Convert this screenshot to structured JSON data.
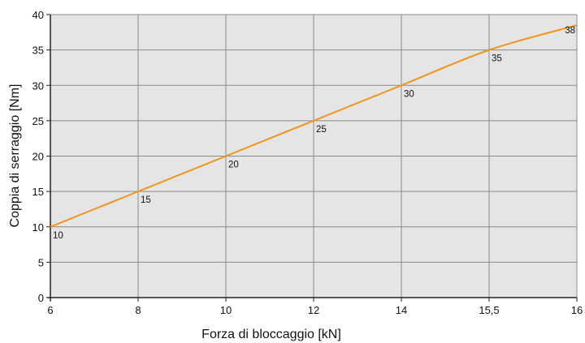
{
  "chart_data": {
    "type": "line",
    "xlabel": "Forza di bloccaggio [kN]",
    "ylabel": "Coppia di serraggio [Nm]",
    "x_tick_labels": [
      "6",
      "8",
      "10",
      "12",
      "14",
      "15,5",
      "16"
    ],
    "y_ticks": [
      0,
      5,
      10,
      15,
      20,
      25,
      30,
      35,
      40
    ],
    "ylim": [
      0,
      40
    ],
    "grid": true,
    "series": [
      {
        "color": "#f0941c",
        "points": [
          {
            "x_label": "6",
            "y": 10,
            "label": "10"
          },
          {
            "x_label": "8",
            "y": 15,
            "label": "15"
          },
          {
            "x_label": "10",
            "y": 20,
            "label": "20"
          },
          {
            "x_label": "12",
            "y": 25,
            "label": "25"
          },
          {
            "x_label": "14",
            "y": 30,
            "label": "30"
          },
          {
            "x_label": "15,5",
            "y": 35,
            "label": "35"
          },
          {
            "x_label": "16",
            "y": 38.5,
            "label": "38"
          }
        ]
      }
    ],
    "colors": {
      "plot_background": "#e5e5e5",
      "grid": "#8a8a8a",
      "axis": "#222222",
      "line": "#f0941c"
    }
  }
}
